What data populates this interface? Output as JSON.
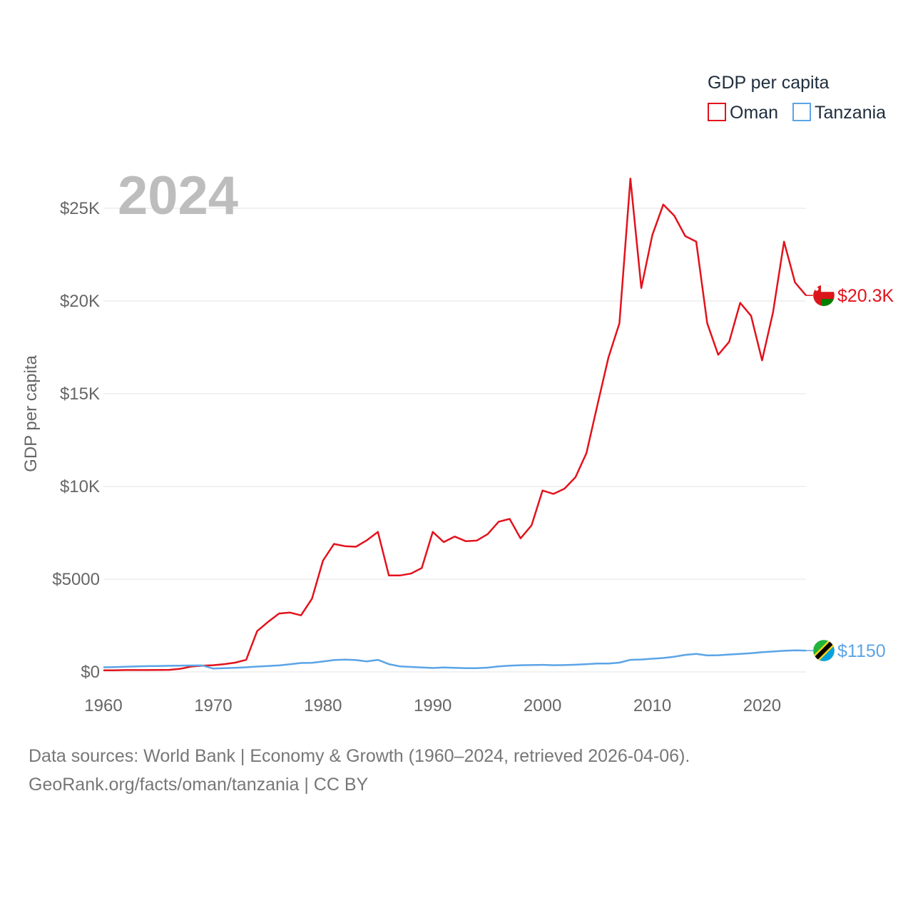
{
  "chart_data": {
    "type": "line",
    "year_label": "2024",
    "ylabel": "GDP per capita",
    "legend_title": "GDP per capita",
    "xlim": [
      1960,
      2024
    ],
    "ylim": [
      0,
      27000
    ],
    "y_ticks": [
      {
        "value": 0,
        "label": "$0"
      },
      {
        "value": 5000,
        "label": "$5000"
      },
      {
        "value": 10000,
        "label": "$10K"
      },
      {
        "value": 15000,
        "label": "$15K"
      },
      {
        "value": 20000,
        "label": "$20K"
      },
      {
        "value": 25000,
        "label": "$25K"
      }
    ],
    "x_ticks": [
      {
        "value": 1960,
        "label": "1960"
      },
      {
        "value": 1970,
        "label": "1970"
      },
      {
        "value": 1980,
        "label": "1980"
      },
      {
        "value": 1990,
        "label": "1990"
      },
      {
        "value": 2000,
        "label": "2000"
      },
      {
        "value": 2010,
        "label": "2010"
      },
      {
        "value": 2020,
        "label": "2020"
      }
    ],
    "x": [
      1960,
      1961,
      1962,
      1963,
      1964,
      1965,
      1966,
      1967,
      1968,
      1969,
      1970,
      1971,
      1972,
      1973,
      1974,
      1975,
      1976,
      1977,
      1978,
      1979,
      1980,
      1981,
      1982,
      1983,
      1984,
      1985,
      1986,
      1987,
      1988,
      1989,
      1990,
      1991,
      1992,
      1993,
      1994,
      1995,
      1996,
      1997,
      1998,
      1999,
      2000,
      2001,
      2002,
      2003,
      2004,
      2005,
      2006,
      2007,
      2008,
      2009,
      2010,
      2011,
      2012,
      2013,
      2014,
      2015,
      2016,
      2017,
      2018,
      2019,
      2020,
      2021,
      2022,
      2023,
      2024
    ],
    "series": [
      {
        "name": "Oman",
        "color": "#e3121c",
        "end_label": "$20.3K",
        "flag": "oman-flag",
        "values": [
          90,
          90,
          100,
          100,
          100,
          105,
          110,
          170,
          290,
          340,
          360,
          420,
          500,
          650,
          2200,
          2700,
          3150,
          3200,
          3050,
          3950,
          6000,
          6900,
          6780,
          6750,
          7100,
          7550,
          5200,
          5200,
          5300,
          5600,
          7550,
          7000,
          7300,
          7050,
          7080,
          7430,
          8100,
          8250,
          7200,
          7900,
          9780,
          9600,
          9880,
          10500,
          11800,
          14400,
          16950,
          18800,
          26600,
          20700,
          23550,
          25200,
          24600,
          23500,
          23200,
          18800,
          17100,
          17800,
          19900,
          19200,
          16800,
          19400,
          23200,
          21000,
          20300
        ]
      },
      {
        "name": "Tanzania",
        "color": "#5ba4e6",
        "end_label": "$1150",
        "flag": "tanzania-flag",
        "values": [
          250,
          260,
          280,
          300,
          310,
          320,
          330,
          340,
          345,
          350,
          180,
          200,
          220,
          250,
          290,
          320,
          350,
          410,
          480,
          490,
          560,
          640,
          660,
          640,
          570,
          650,
          420,
          300,
          270,
          240,
          210,
          240,
          220,
          200,
          200,
          230,
          300,
          340,
          360,
          370,
          380,
          360,
          370,
          390,
          420,
          450,
          450,
          500,
          650,
          670,
          710,
          750,
          820,
          920,
          970,
          890,
          900,
          940,
          970,
          1010,
          1060,
          1100,
          1140,
          1160,
          1150
        ]
      }
    ],
    "source_line1": "Data sources: World Bank | Economy & Growth (1960–2024, retrieved 2026-04-06).",
    "source_line2": "GeoRank.org/facts/oman/tanzania | CC BY"
  }
}
